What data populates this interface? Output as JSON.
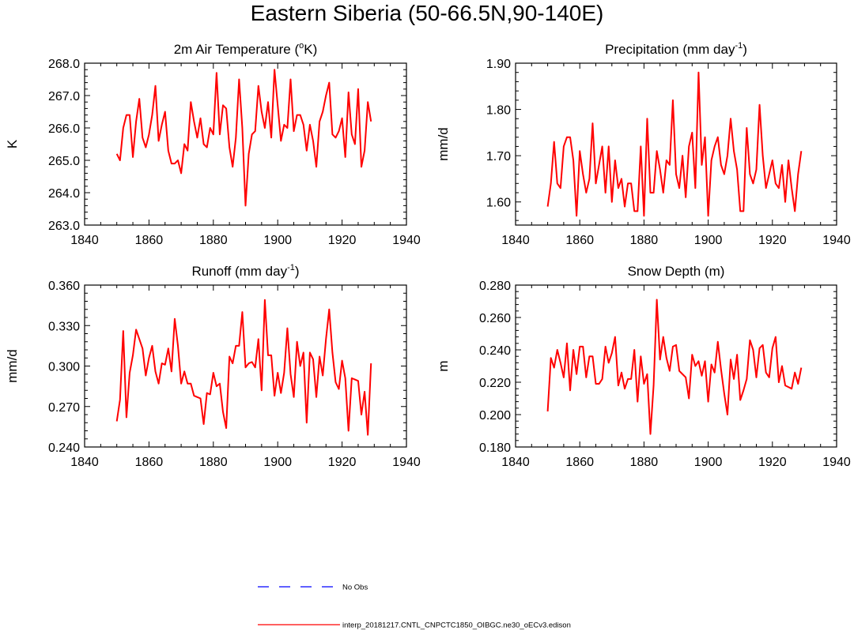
{
  "figure": {
    "title": "Eastern Siberia (50-66.5N,90-140E)"
  },
  "colors": {
    "model_line": "#ff0000",
    "obs_line": "#0000ff",
    "axis": "#000000"
  },
  "legend": {
    "obs_label": "No Obs",
    "model_label": "interp_20181217.CNTL_CNPCTC1850_OIBGC.ne30_oECv3.edison"
  },
  "chart_data": [
    {
      "type": "line",
      "title": "2m Air Temperature",
      "title_unit_base": "K",
      "title_unit_sup": "o",
      "title_parts": [
        "2m Air Temperature (",
        "o",
        "K)"
      ],
      "xlabel": "",
      "ylabel": "K",
      "xlim": [
        1840,
        1940
      ],
      "ylim": [
        263.0,
        268.0
      ],
      "xticks": [
        "1840",
        "1860",
        "1880",
        "1900",
        "1920",
        "1940"
      ],
      "yticks": [
        "263.0",
        "264.0",
        "265.0",
        "266.0",
        "267.0",
        "268.0"
      ],
      "x_start": 1850,
      "series": [
        {
          "name": "interp_20181217.CNTL_CNPCTC1850_OIBGC.ne30_oECv3.edison",
          "values": [
            265.2,
            265.0,
            266.0,
            266.4,
            266.4,
            265.1,
            266.2,
            266.9,
            265.7,
            265.4,
            265.8,
            266.4,
            267.3,
            265.6,
            266.1,
            266.5,
            265.3,
            264.9,
            264.9,
            265.0,
            264.6,
            265.5,
            265.3,
            266.8,
            266.2,
            265.7,
            266.3,
            265.5,
            265.4,
            266.0,
            265.8,
            267.7,
            265.8,
            266.7,
            266.6,
            265.4,
            264.8,
            265.7,
            267.5,
            266.0,
            263.6,
            265.2,
            265.8,
            265.9,
            267.3,
            266.5,
            266.0,
            266.8,
            265.7,
            267.8,
            266.7,
            265.6,
            266.1,
            266.0,
            267.5,
            265.9,
            266.4,
            266.4,
            266.1,
            265.3,
            266.1,
            265.6,
            264.8,
            266.2,
            266.5,
            267.0,
            267.4,
            265.8,
            265.7,
            265.9,
            266.3,
            265.1,
            267.1,
            265.8,
            265.5,
            267.2,
            264.8,
            265.3,
            266.8,
            266.2
          ]
        }
      ]
    },
    {
      "type": "line",
      "title": "Precipitation",
      "title_parts": [
        "Precipitation (mm day",
        "-1",
        ")"
      ],
      "xlabel": "",
      "ylabel": "mm/d",
      "xlim": [
        1840,
        1940
      ],
      "ylim": [
        1.55,
        1.9
      ],
      "xticks": [
        "1840",
        "1860",
        "1880",
        "1900",
        "1920",
        "1940"
      ],
      "yticks": [
        "1.60",
        "1.70",
        "1.80",
        "1.90"
      ],
      "ytick_values": [
        1.6,
        1.7,
        1.8,
        1.9
      ],
      "x_start": 1850,
      "series": [
        {
          "name": "interp_20181217.CNTL_CNPCTC1850_OIBGC.ne30_oECv3.edison",
          "values": [
            1.59,
            1.64,
            1.73,
            1.64,
            1.63,
            1.72,
            1.74,
            1.74,
            1.69,
            1.57,
            1.71,
            1.66,
            1.62,
            1.65,
            1.77,
            1.64,
            1.68,
            1.72,
            1.62,
            1.72,
            1.6,
            1.69,
            1.63,
            1.65,
            1.59,
            1.64,
            1.64,
            1.58,
            1.58,
            1.72,
            1.57,
            1.78,
            1.62,
            1.62,
            1.71,
            1.67,
            1.62,
            1.69,
            1.68,
            1.82,
            1.66,
            1.63,
            1.7,
            1.61,
            1.72,
            1.75,
            1.63,
            1.88,
            1.68,
            1.74,
            1.57,
            1.69,
            1.72,
            1.74,
            1.68,
            1.66,
            1.7,
            1.78,
            1.71,
            1.67,
            1.58,
            1.58,
            1.76,
            1.66,
            1.64,
            1.67,
            1.81,
            1.7,
            1.63,
            1.66,
            1.69,
            1.64,
            1.63,
            1.68,
            1.6,
            1.69,
            1.63,
            1.58,
            1.66,
            1.71
          ]
        }
      ]
    },
    {
      "type": "line",
      "title": "Runoff",
      "title_parts": [
        "Runoff (mm day",
        "-1",
        ")"
      ],
      "xlabel": "",
      "ylabel": "mm/d",
      "xlim": [
        1840,
        1940
      ],
      "ylim": [
        0.24,
        0.36
      ],
      "xticks": [
        "1840",
        "1860",
        "1880",
        "1900",
        "1920",
        "1940"
      ],
      "yticks": [
        "0.240",
        "0.270",
        "0.300",
        "0.330",
        "0.360"
      ],
      "ytick_values": [
        0.24,
        0.27,
        0.3,
        0.33,
        0.36
      ],
      "x_start": 1850,
      "series": [
        {
          "name": "interp_20181217.CNTL_CNPCTC1850_OIBGC.ne30_oECv3.edison",
          "values": [
            0.259,
            0.275,
            0.326,
            0.262,
            0.295,
            0.308,
            0.327,
            0.32,
            0.313,
            0.293,
            0.306,
            0.315,
            0.296,
            0.287,
            0.302,
            0.301,
            0.313,
            0.296,
            0.335,
            0.315,
            0.287,
            0.296,
            0.287,
            0.287,
            0.278,
            0.277,
            0.276,
            0.257,
            0.28,
            0.279,
            0.295,
            0.285,
            0.287,
            0.266,
            0.254,
            0.307,
            0.302,
            0.315,
            0.315,
            0.34,
            0.299,
            0.302,
            0.303,
            0.299,
            0.32,
            0.282,
            0.349,
            0.308,
            0.308,
            0.278,
            0.295,
            0.28,
            0.295,
            0.328,
            0.294,
            0.277,
            0.318,
            0.3,
            0.31,
            0.258,
            0.31,
            0.305,
            0.277,
            0.307,
            0.293,
            0.32,
            0.342,
            0.31,
            0.288,
            0.283,
            0.304,
            0.291,
            0.252,
            0.291,
            0.29,
            0.289,
            0.264,
            0.281,
            0.249,
            0.302
          ]
        }
      ]
    },
    {
      "type": "line",
      "title": "Snow Depth",
      "title_parts": [
        "Snow Depth (m)"
      ],
      "xlabel": "",
      "ylabel": "m",
      "xlim": [
        1840,
        1940
      ],
      "ylim": [
        0.18,
        0.28
      ],
      "xticks": [
        "1840",
        "1860",
        "1880",
        "1900",
        "1920",
        "1940"
      ],
      "yticks": [
        "0.180",
        "0.200",
        "0.220",
        "0.240",
        "0.260",
        "0.280"
      ],
      "ytick_values": [
        0.18,
        0.2,
        0.22,
        0.24,
        0.26,
        0.28
      ],
      "x_start": 1850,
      "series": [
        {
          "name": "interp_20181217.CNTL_CNPCTC1850_OIBGC.ne30_oECv3.edison",
          "values": [
            0.202,
            0.235,
            0.229,
            0.24,
            0.232,
            0.223,
            0.244,
            0.215,
            0.24,
            0.225,
            0.242,
            0.242,
            0.223,
            0.236,
            0.236,
            0.219,
            0.219,
            0.222,
            0.242,
            0.232,
            0.238,
            0.248,
            0.218,
            0.226,
            0.216,
            0.222,
            0.222,
            0.24,
            0.208,
            0.236,
            0.219,
            0.225,
            0.188,
            0.218,
            0.271,
            0.234,
            0.248,
            0.235,
            0.227,
            0.242,
            0.243,
            0.227,
            0.225,
            0.223,
            0.21,
            0.237,
            0.23,
            0.233,
            0.224,
            0.233,
            0.208,
            0.231,
            0.226,
            0.245,
            0.228,
            0.213,
            0.2,
            0.234,
            0.222,
            0.237,
            0.209,
            0.215,
            0.222,
            0.246,
            0.24,
            0.223,
            0.241,
            0.243,
            0.226,
            0.223,
            0.241,
            0.248,
            0.22,
            0.23,
            0.218,
            0.217,
            0.216,
            0.226,
            0.219,
            0.229
          ]
        }
      ]
    }
  ]
}
